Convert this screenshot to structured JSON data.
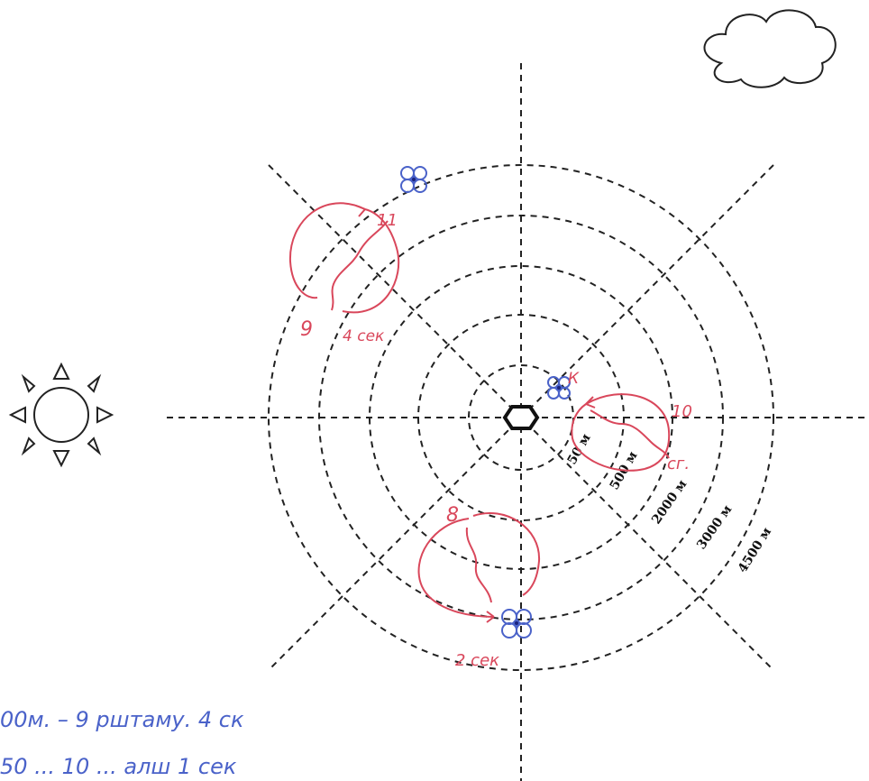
{
  "rings": [
    {
      "label": "50 м"
    },
    {
      "label": "500 м"
    },
    {
      "label": "2000 м"
    },
    {
      "label": "3000 м"
    },
    {
      "label": "4500 м"
    }
  ],
  "annotations": {
    "top_left_count": "9",
    "top_left_time": "4 сек",
    "top_left_flower": "11",
    "right_top": "10",
    "right_side": "сг.",
    "right_flower": "К",
    "bottom_count": "8",
    "bottom_time": "2 сек"
  },
  "notes": {
    "line1": "00м. – 9 рштаму. 4 ск",
    "line2": "50 ... 10 ... алш 1 сек"
  },
  "colors": {
    "lines": "#222222",
    "red_ink": "#d9475b",
    "blue_ink": "#4a62c9"
  },
  "icons": [
    "sun-icon",
    "cloud-icon",
    "hive-icon",
    "flower-icon"
  ]
}
